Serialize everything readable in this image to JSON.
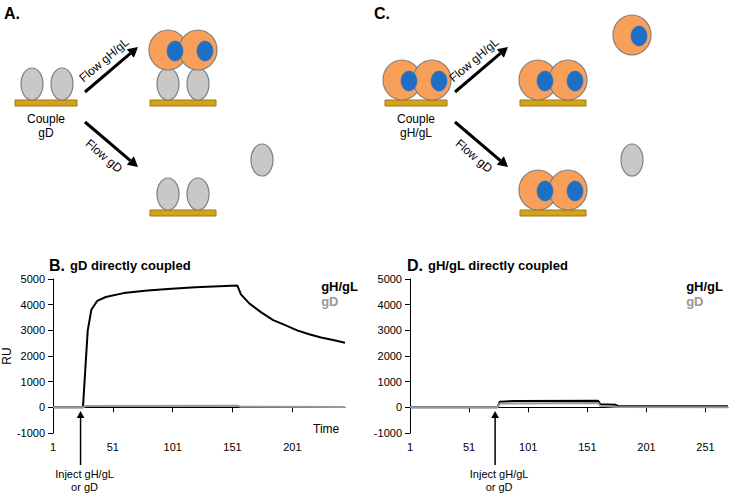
{
  "diagrams": [
    {
      "panel": "A.",
      "coupled": {
        "text": "Couple\ngD",
        "complex": false
      },
      "flows": [
        {
          "text": "Flow gH/gL",
          "complex": true,
          "binds": true
        },
        {
          "text": "Flow gD",
          "complex": false,
          "binds": false
        }
      ]
    },
    {
      "panel": "C.",
      "coupled": {
        "text": "Couple\ngH/gL",
        "complex": true
      },
      "flows": [
        {
          "text": "Flow gH/gL",
          "complex": true,
          "binds": false
        },
        {
          "text": "Flow gD",
          "complex": false,
          "binds": false
        }
      ]
    }
  ],
  "chart_data": [
    {
      "panel": "B.",
      "type": "line",
      "title": "gD directly coupled",
      "ylabel": "RU",
      "xlabel": "Time",
      "xlim": [
        1,
        245
      ],
      "xticks": [
        1,
        51,
        101,
        151,
        201
      ],
      "ylim": [
        -1000,
        5000
      ],
      "yticks": [
        -1000,
        0,
        1000,
        2000,
        3000,
        4000,
        5000
      ],
      "grid": false,
      "legend": "upper right",
      "series": [
        {
          "name": "gH/gL",
          "color": "#000000",
          "x": [
            1,
            20,
            26,
            28,
            30,
            33,
            38,
            45,
            60,
            80,
            100,
            120,
            140,
            155,
            158,
            165,
            175,
            185,
            195,
            205,
            215,
            225,
            235,
            245
          ],
          "values": [
            0,
            0,
            0,
            1500,
            3000,
            3800,
            4150,
            4300,
            4450,
            4550,
            4620,
            4680,
            4720,
            4750,
            4400,
            4050,
            3700,
            3400,
            3200,
            3000,
            2850,
            2720,
            2620,
            2520
          ]
        },
        {
          "name": "gD",
          "color": "#999999",
          "x": [
            1,
            26,
            28,
            155,
            158,
            245
          ],
          "values": [
            0,
            0,
            50,
            60,
            20,
            10
          ]
        }
      ],
      "annotations": [
        {
          "x": 24,
          "text": "Inject gH/gL\nor gD"
        }
      ]
    },
    {
      "panel": "D.",
      "type": "line",
      "title": "gH/gL directly coupled",
      "xlim": [
        1,
        270
      ],
      "xticks": [
        1,
        51,
        101,
        151,
        201,
        251
      ],
      "ylim": [
        -1000,
        5000
      ],
      "yticks": [
        -1000,
        0,
        1000,
        2000,
        3000,
        4000,
        5000
      ],
      "grid": false,
      "legend": "upper right",
      "series": [
        {
          "name": "gH/gL",
          "color": "#000000",
          "x": [
            1,
            75,
            77,
            90,
            160,
            162,
            175,
            177,
            270
          ],
          "values": [
            0,
            0,
            220,
            250,
            260,
            120,
            100,
            50,
            40
          ]
        },
        {
          "name": "gD",
          "color": "#999999",
          "x": [
            1,
            75,
            77,
            160,
            162,
            176,
            270
          ],
          "values": [
            0,
            0,
            150,
            170,
            60,
            10,
            0
          ]
        }
      ],
      "annotations": [
        {
          "x": 73,
          "text": "Inject gH/gL\nor gD"
        }
      ]
    }
  ]
}
